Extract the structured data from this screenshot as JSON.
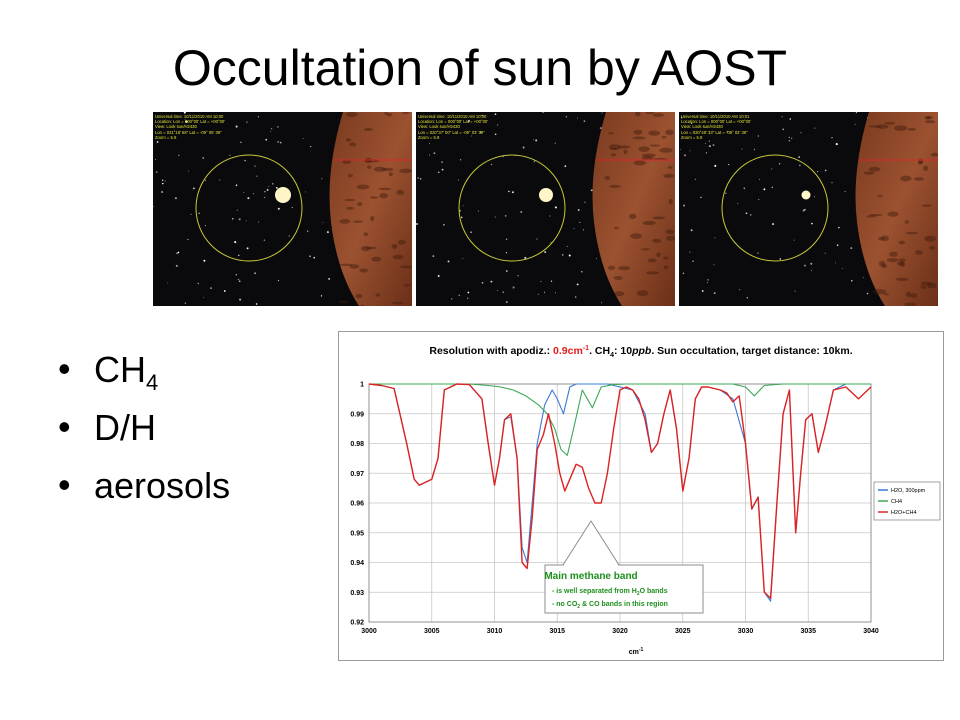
{
  "slide": {
    "title": "Occultation of sun by AOST",
    "bullets": [
      {
        "text": "CH",
        "sub": "4"
      },
      {
        "text": "D/H",
        "sub": ""
      },
      {
        "text": "aerosols",
        "sub": ""
      }
    ],
    "bullet_glyph": "•"
  },
  "panels": [
    {
      "hud": [
        "Universal time: 10/11/2010 AM 10:00",
        "Location: Lon = 000°00' Lat = +00°00'",
        "View: Look sun/H2430",
        "Lon = 021°18' 58\"  Lat = -09° 05' 39\"",
        "Zoom = 5.9"
      ]
    },
    {
      "hud": [
        "Universal time: 10/11/2010 AM 10:00",
        "Location: Lon = 000°00' Lat = +00°00'",
        "View: Look sun/H2430",
        "Lon = 020°37' 00\"  Lat = -09° 03' 39\"",
        "Zoom = 5.9"
      ]
    },
    {
      "hud": [
        "Universal time: 10/11/2010 AM 10:01",
        "Location: Lon = 000°00' Lat = +00°00'",
        "View: Look sun/H2430",
        "Lon = 020°48' 33\"  Lat = -09° 02' 39\"",
        "Zoom = 5.9"
      ]
    }
  ],
  "colors": {
    "h2o": "#3a78d6",
    "ch4": "#3aa855",
    "sum": "#dd2222",
    "annotation": "#1d8f1d",
    "title_red": "#e31b1b"
  },
  "chart_data": {
    "type": "line",
    "title_parts": [
      "Resolution with apodiz.: ",
      "0.9cm",
      "-1",
      ".  CH",
      "4",
      ": 10",
      "ppb",
      ".  Sun occultation, target distance: 10km."
    ],
    "xlabel": "cm",
    "xlabel_sup": "-1",
    "xlim": [
      3000,
      3040
    ],
    "ylim": [
      0.92,
      1.0
    ],
    "xticks": [
      "3000",
      "3005",
      "3010",
      "3015",
      "3020",
      "3025",
      "3030",
      "3035",
      "3040"
    ],
    "yticks": [
      "1",
      "0.99",
      "0.98",
      "0.97",
      "0.96",
      "0.95",
      "0.94",
      "0.93",
      "0.92"
    ],
    "grid": true,
    "legend_position": "right",
    "series": [
      {
        "name": "H2O, 300ppm",
        "color": "#3a78d6",
        "x": [
          3000,
          3001,
          3002,
          3003,
          3003.6,
          3004,
          3004.5,
          3005,
          3005.5,
          3006,
          3007,
          3008,
          3009,
          3009.5,
          3010,
          3010.4,
          3010.8,
          3011.3,
          3011.8,
          3012.2,
          3012.6,
          3013,
          3013.4,
          3014,
          3014.6,
          3015,
          3015.5,
          3016,
          3016.5,
          3017,
          3018,
          3019,
          3020,
          3021,
          3022,
          3022.5,
          3023,
          3023.5,
          3024,
          3024.5,
          3025,
          3025.5,
          3026,
          3026.5,
          3027,
          3028,
          3029,
          3030,
          3030.5,
          3031,
          3031.5,
          3032,
          3032.5,
          3033,
          3033.5,
          3034,
          3034.4,
          3034.8,
          3035.3,
          3035.8,
          3036.3,
          3037,
          3038,
          3039,
          3040
        ],
        "y": [
          1.0,
          0.9995,
          0.9985,
          0.98,
          0.968,
          0.966,
          0.967,
          0.968,
          0.975,
          0.998,
          1.0,
          0.9998,
          0.995,
          0.98,
          0.966,
          0.975,
          0.988,
          0.989,
          0.975,
          0.945,
          0.94,
          0.96,
          0.98,
          0.993,
          0.998,
          0.995,
          0.99,
          0.999,
          1.0,
          1.0,
          1.0,
          1.0,
          0.999,
          0.998,
          0.99,
          0.977,
          0.98,
          0.99,
          0.998,
          0.985,
          0.964,
          0.975,
          0.995,
          0.999,
          0.999,
          0.998,
          0.995,
          0.98,
          0.958,
          0.962,
          0.93,
          0.927,
          0.96,
          0.99,
          0.998,
          0.95,
          0.97,
          0.988,
          0.99,
          0.977,
          0.985,
          0.998,
          1.0,
          1.0,
          1.0
        ]
      },
      {
        "name": "CH4",
        "color": "#3aa855",
        "x": [
          3000,
          3005,
          3008,
          3009.5,
          3010.5,
          3011.5,
          3012.5,
          3013.5,
          3014.2,
          3014.8,
          3015.3,
          3015.8,
          3016.3,
          3017,
          3017.8,
          3018.5,
          3019.5,
          3020.5,
          3022,
          3025,
          3029,
          3030,
          3030.7,
          3031.5,
          3033,
          3036,
          3040
        ],
        "y": [
          1.0,
          1.0,
          1.0,
          0.9995,
          0.999,
          0.998,
          0.996,
          0.993,
          0.99,
          0.985,
          0.978,
          0.976,
          0.985,
          0.998,
          0.992,
          0.999,
          0.9998,
          1.0,
          1.0,
          1.0,
          1.0,
          0.999,
          0.996,
          0.9995,
          1.0,
          1.0,
          1.0
        ]
      },
      {
        "name": "H2O+CH4",
        "color": "#dd2222",
        "x": [
          3000,
          3001,
          3002,
          3003,
          3003.6,
          3004,
          3004.5,
          3005,
          3005.5,
          3006,
          3007,
          3008,
          3009,
          3009.5,
          3010,
          3010.4,
          3010.8,
          3011.3,
          3011.8,
          3012.2,
          3012.6,
          3013,
          3013.4,
          3013.9,
          3014.3,
          3014.8,
          3015.2,
          3015.6,
          3016,
          3016.5,
          3017,
          3017.5,
          3018,
          3018.5,
          3019,
          3019.5,
          3020,
          3020.5,
          3021,
          3021.5,
          3022,
          3022.5,
          3023,
          3023.5,
          3024,
          3024.5,
          3025,
          3025.5,
          3026,
          3026.5,
          3027,
          3028,
          3028.5,
          3029,
          3029.5,
          3030,
          3030.5,
          3031,
          3031.5,
          3032,
          3032.5,
          3033,
          3033.5,
          3034,
          3034.4,
          3034.8,
          3035.3,
          3035.8,
          3036.3,
          3037,
          3038,
          3038.5,
          3039,
          3039.5,
          3040
        ],
        "y": [
          1.0,
          0.9995,
          0.9985,
          0.98,
          0.968,
          0.966,
          0.967,
          0.968,
          0.975,
          0.998,
          1.0,
          0.9998,
          0.995,
          0.98,
          0.966,
          0.975,
          0.988,
          0.99,
          0.975,
          0.94,
          0.938,
          0.955,
          0.978,
          0.983,
          0.99,
          0.98,
          0.97,
          0.964,
          0.968,
          0.973,
          0.972,
          0.965,
          0.96,
          0.96,
          0.97,
          0.985,
          0.998,
          0.999,
          0.998,
          0.995,
          0.988,
          0.977,
          0.98,
          0.99,
          0.998,
          0.985,
          0.964,
          0.975,
          0.995,
          0.999,
          0.999,
          0.998,
          0.997,
          0.994,
          0.996,
          0.98,
          0.958,
          0.962,
          0.93,
          0.928,
          0.96,
          0.99,
          0.998,
          0.95,
          0.97,
          0.988,
          0.99,
          0.977,
          0.985,
          0.998,
          0.999,
          0.997,
          0.995,
          0.997,
          0.999
        ]
      }
    ],
    "annotation": {
      "title": "Main methane band",
      "lines": [
        [
          "- is well separated from H",
          "2",
          "O bands"
        ],
        [
          "- no CO",
          "2",
          " & CO bands in this region"
        ]
      ]
    }
  }
}
